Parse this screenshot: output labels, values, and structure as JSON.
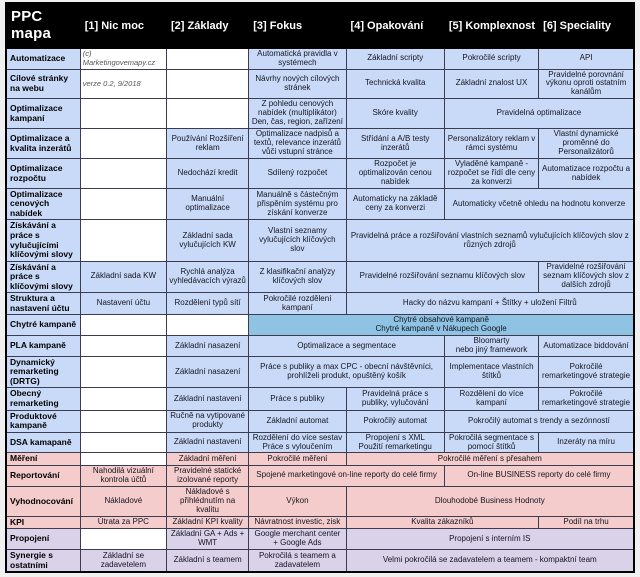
{
  "colors": {
    "header_bg": "#000000",
    "header_text": "#ffffff",
    "level_blue": "#c9daf8",
    "smart_campaign_blue": "#8fc3e4",
    "measurement_pink": "#f4cccc",
    "integration_purple": "#d9d2e9",
    "empty_cell_white": "#ffffff"
  },
  "table": {
    "title": "PPC mapa",
    "columns": [
      "[1] Nic moc",
      "[2] Základy",
      "[3]  Fokus",
      "[4] Opakování",
      "[5] Komplexnost",
      "[6] Speciality"
    ],
    "rows": [
      {
        "label": "Automatizace",
        "theme": "blue",
        "cells": [
          {
            "t": "(c) Marketingovemapy.cz",
            "s": 1,
            "bg": "white",
            "note": true
          },
          {
            "t": "",
            "s": 1,
            "bg": "white"
          },
          {
            "t": "Automatická pravidla v systémech",
            "s": 1,
            "bg": "blue"
          },
          {
            "t": "Základní scripty",
            "s": 1,
            "bg": "blue"
          },
          {
            "t": "Pokročilé scripty",
            "s": 1,
            "bg": "blue"
          },
          {
            "t": "API",
            "s": 1,
            "bg": "blue"
          }
        ]
      },
      {
        "label": "Cílové stránky na webu",
        "theme": "blue",
        "cells": [
          {
            "t": "verze 0.2, 9/2018",
            "s": 1,
            "bg": "white",
            "note": true
          },
          {
            "t": "",
            "s": 1,
            "bg": "white"
          },
          {
            "t": "Návrhy nových cílových stránek",
            "s": 1,
            "bg": "blue"
          },
          {
            "t": "Technická kvalita",
            "s": 1,
            "bg": "blue"
          },
          {
            "t": "Základní znalost UX",
            "s": 1,
            "bg": "blue"
          },
          {
            "t": "Pravidelné porovnání výkonu oproti ostatním kanálům",
            "s": 1,
            "bg": "blue"
          }
        ]
      },
      {
        "label": "Optimalizace kampaní",
        "theme": "blue",
        "cells": [
          {
            "t": "",
            "s": 1,
            "bg": "white"
          },
          {
            "t": "",
            "s": 1,
            "bg": "white"
          },
          {
            "t": "Z pohledu cenových nabídek (multiplikátor) Den, čas, region, zařízení",
            "s": 1,
            "bg": "blue"
          },
          {
            "t": "Skóre kvality",
            "s": 1,
            "bg": "blue"
          },
          {
            "t": "Pravidelná optimalizace",
            "s": 2,
            "bg": "blue"
          }
        ]
      },
      {
        "label": "Optimalizace a kvalita inzerátů",
        "theme": "blue",
        "cells": [
          {
            "t": "",
            "s": 1,
            "bg": "white"
          },
          {
            "t": "Používání Rozšíření reklam",
            "s": 1,
            "bg": "blue"
          },
          {
            "t": "Optimalizace nadpisů a textů, relevance inzerátů vůči vstupní stránce",
            "s": 1,
            "bg": "blue"
          },
          {
            "t": "Střídání a A/B testy inzerátů",
            "s": 1,
            "bg": "blue"
          },
          {
            "t": "Personalizátory reklam v rámci systému",
            "s": 1,
            "bg": "blue"
          },
          {
            "t": "Vlastní dynamické proměnné do Personalizátorů",
            "s": 1,
            "bg": "blue"
          }
        ]
      },
      {
        "label": "Optimalizace rozpočtu",
        "theme": "blue",
        "cells": [
          {
            "t": "",
            "s": 1,
            "bg": "white"
          },
          {
            "t": "Nedochází kredit",
            "s": 1,
            "bg": "blue"
          },
          {
            "t": "Sdílený rozpočet",
            "s": 1,
            "bg": "blue"
          },
          {
            "t": "Rozpočet je optimalizován cenou nabídek",
            "s": 1,
            "bg": "blue"
          },
          {
            "t": "Vyladěné kampaně - rozpočet se řídí dle ceny za konverzi",
            "s": 1,
            "bg": "blue"
          },
          {
            "t": "Automatizace rozpočtu a nabídek",
            "s": 1,
            "bg": "blue"
          }
        ]
      },
      {
        "label": "Optimalizace cenových nabídek",
        "theme": "blue",
        "cells": [
          {
            "t": "",
            "s": 1,
            "bg": "white"
          },
          {
            "t": "Manuální optimalizace",
            "s": 1,
            "bg": "blue"
          },
          {
            "t": "Manuálně s částečným přispěním systému pro získání konverze",
            "s": 1,
            "bg": "blue"
          },
          {
            "t": "Automaticky na základě ceny za konverzi",
            "s": 1,
            "bg": "blue"
          },
          {
            "t": "Automaticky včetně ohledu na hodnotu konverze",
            "s": 2,
            "bg": "blue"
          }
        ]
      },
      {
        "label": "Získávání a práce s vylučujícími klíčovými slovy",
        "theme": "blue",
        "cells": [
          {
            "t": "",
            "s": 1,
            "bg": "white"
          },
          {
            "t": "Základní sada vylučujících KW",
            "s": 1,
            "bg": "blue"
          },
          {
            "t": "Vlastní seznamy vylučujících klíčových slov",
            "s": 1,
            "bg": "blue"
          },
          {
            "t": "Pravidelná práce a rozšiřování vlastních seznamů vylučujících klíčových slov z různých zdrojů",
            "s": 3,
            "bg": "blue"
          }
        ]
      },
      {
        "label": "Získávání a práce s klíčovými slovy",
        "theme": "blue",
        "cells": [
          {
            "t": "Základní sada KW",
            "s": 1,
            "bg": "blue"
          },
          {
            "t": "Rychlá analýza vyhledávacích výrazů",
            "s": 1,
            "bg": "blue"
          },
          {
            "t": "Z klasifikační analýzy klíčových slov",
            "s": 1,
            "bg": "blue"
          },
          {
            "t": "Pravidelné rozšiřování seznamu klíčových slov",
            "s": 2,
            "bg": "blue"
          },
          {
            "t": "Pravidelné rozšiřování seznam klíčových slov z dalších zdrojů",
            "s": 1,
            "bg": "blue"
          }
        ]
      },
      {
        "label": "Struktura a nastavení účtu",
        "theme": "blue",
        "cells": [
          {
            "t": "Nastavení účtu",
            "s": 1,
            "bg": "blue"
          },
          {
            "t": "Rozdělení typů sítí",
            "s": 1,
            "bg": "blue"
          },
          {
            "t": "Pokročilé rozdělení kampaní",
            "s": 1,
            "bg": "blue"
          },
          {
            "t": "Hacky do názvu kampaní + Štítky + uložení Filtrů",
            "s": 3,
            "bg": "blue"
          }
        ]
      },
      {
        "label": "Chytré kampaně",
        "theme": "blue",
        "cells": [
          {
            "t": "",
            "s": 1,
            "bg": "white"
          },
          {
            "t": "",
            "s": 1,
            "bg": "white"
          },
          {
            "t": "Chytré obsahové kampaně\nChytré kampaně v Nákupech Google",
            "s": 4,
            "bg": "dblue"
          }
        ]
      },
      {
        "label": "PLA kampaně",
        "theme": "blue",
        "cells": [
          {
            "t": "",
            "s": 1,
            "bg": "white"
          },
          {
            "t": "Základní nasazení",
            "s": 1,
            "bg": "blue"
          },
          {
            "t": "Optimalizace a segmentace",
            "s": 2,
            "bg": "blue"
          },
          {
            "t": "Bloomarty\nnebo jiný framework",
            "s": 1,
            "bg": "blue"
          },
          {
            "t": "Automatizace biddování",
            "s": 1,
            "bg": "blue"
          }
        ]
      },
      {
        "label": "Dynamický remarketing (DRTG)",
        "theme": "blue",
        "cells": [
          {
            "t": "",
            "s": 1,
            "bg": "white"
          },
          {
            "t": "Základní nasazení",
            "s": 1,
            "bg": "blue"
          },
          {
            "t": "Práce s publiky a max CPC - obecní návštěvníci, prohlíželi produkt, opuštěný košík",
            "s": 2,
            "bg": "blue"
          },
          {
            "t": "Implementace vlastních štítků",
            "s": 1,
            "bg": "blue"
          },
          {
            "t": "Pokročilé remarketingové strategie",
            "s": 1,
            "bg": "blue"
          }
        ]
      },
      {
        "label": "Obecný remarketing",
        "theme": "blue",
        "cells": [
          {
            "t": "",
            "s": 1,
            "bg": "white"
          },
          {
            "t": "Základní nastavení",
            "s": 1,
            "bg": "blue"
          },
          {
            "t": "Práce s publiky",
            "s": 1,
            "bg": "blue"
          },
          {
            "t": "Pravidelná práce s publiky, vylučování",
            "s": 1,
            "bg": "blue"
          },
          {
            "t": "Rozdělení do více kampaní",
            "s": 1,
            "bg": "blue"
          },
          {
            "t": "Pokročilé remarketingové strategie",
            "s": 1,
            "bg": "blue"
          }
        ]
      },
      {
        "label": "Produktové kampaně",
        "theme": "blue",
        "cells": [
          {
            "t": "",
            "s": 1,
            "bg": "white"
          },
          {
            "t": "Ručně na vytipované produkty",
            "s": 1,
            "bg": "blue"
          },
          {
            "t": "Základní automat",
            "s": 1,
            "bg": "blue"
          },
          {
            "t": "Pokročilý automat",
            "s": 1,
            "bg": "blue"
          },
          {
            "t": "Pokročilý automat s trendy a sezónností",
            "s": 2,
            "bg": "blue"
          }
        ]
      },
      {
        "label": "DSA kamapaně",
        "theme": "blue",
        "cells": [
          {
            "t": "",
            "s": 1,
            "bg": "white"
          },
          {
            "t": "Základní nastavení",
            "s": 1,
            "bg": "blue"
          },
          {
            "t": "Rozdělení do více sestav\nPráce s vyloučením",
            "s": 1,
            "bg": "blue"
          },
          {
            "t": "Propojení s XML\nPoužití remarketingu",
            "s": 1,
            "bg": "blue"
          },
          {
            "t": "Pokročilá segmentace s pomocí štítků",
            "s": 1,
            "bg": "blue"
          },
          {
            "t": "Inzeráty na míru",
            "s": 1,
            "bg": "blue"
          }
        ]
      },
      {
        "label": "Měření",
        "theme": "pink",
        "cells": [
          {
            "t": "",
            "s": 1,
            "bg": "white"
          },
          {
            "t": "Základní měření",
            "s": 1,
            "bg": "pink"
          },
          {
            "t": "Pokročilé měření",
            "s": 1,
            "bg": "pink"
          },
          {
            "t": "Pokročilé měření s přesahem",
            "s": 3,
            "bg": "pink"
          }
        ]
      },
      {
        "label": "Reportování",
        "theme": "pink",
        "cells": [
          {
            "t": "Nahodilá vizuální kontrola účtů",
            "s": 1,
            "bg": "pink"
          },
          {
            "t": "Pravidelné statické izolované reporty",
            "s": 1,
            "bg": "pink"
          },
          {
            "t": "Spojené marketingové on-line reporty do celé firmy",
            "s": 2,
            "bg": "pink"
          },
          {
            "t": "On-line BUSINESS reporty do celé firmy",
            "s": 2,
            "bg": "pink"
          }
        ]
      },
      {
        "label": "Vyhodnocování",
        "theme": "pink",
        "cells": [
          {
            "t": "Nákladové",
            "s": 1,
            "bg": "pink"
          },
          {
            "t": "Nákladové s přihlédnutím na kvalitu",
            "s": 1,
            "bg": "pink"
          },
          {
            "t": "Výkon",
            "s": 1,
            "bg": "pink"
          },
          {
            "t": "Dlouhodobé Business Hodnoty",
            "s": 3,
            "bg": "pink"
          }
        ]
      },
      {
        "label": "KPI",
        "theme": "pink",
        "cells": [
          {
            "t": "Útrata za PPC",
            "s": 1,
            "bg": "pink"
          },
          {
            "t": "Základní KPI kvality",
            "s": 1,
            "bg": "pink"
          },
          {
            "t": "Návratnost investic, zisk",
            "s": 1,
            "bg": "pink"
          },
          {
            "t": "Kvalita zákazníků",
            "s": 2,
            "bg": "pink"
          },
          {
            "t": "Podíl na trhu",
            "s": 1,
            "bg": "pink"
          }
        ]
      },
      {
        "label": "Propojení",
        "theme": "purple",
        "cells": [
          {
            "t": "",
            "s": 1,
            "bg": "white"
          },
          {
            "t": "Základní GA + Ads + WMT",
            "s": 1,
            "bg": "purple"
          },
          {
            "t": "Google merchant center + Google Ads",
            "s": 1,
            "bg": "purple"
          },
          {
            "t": "Propojení s interním IS",
            "s": 3,
            "bg": "purple"
          }
        ]
      },
      {
        "label": "Synergie s ostatními",
        "theme": "purple",
        "cells": [
          {
            "t": "Základní se zadavetelem",
            "s": 1,
            "bg": "purple"
          },
          {
            "t": "Základní s teamem",
            "s": 1,
            "bg": "purple"
          },
          {
            "t": "Pokročilá s teamem a zadavatelem",
            "s": 1,
            "bg": "purple"
          },
          {
            "t": "Velmi pokročilá se zadavatelem a teamem - kompaktní team",
            "s": 3,
            "bg": "purple"
          }
        ]
      }
    ]
  }
}
